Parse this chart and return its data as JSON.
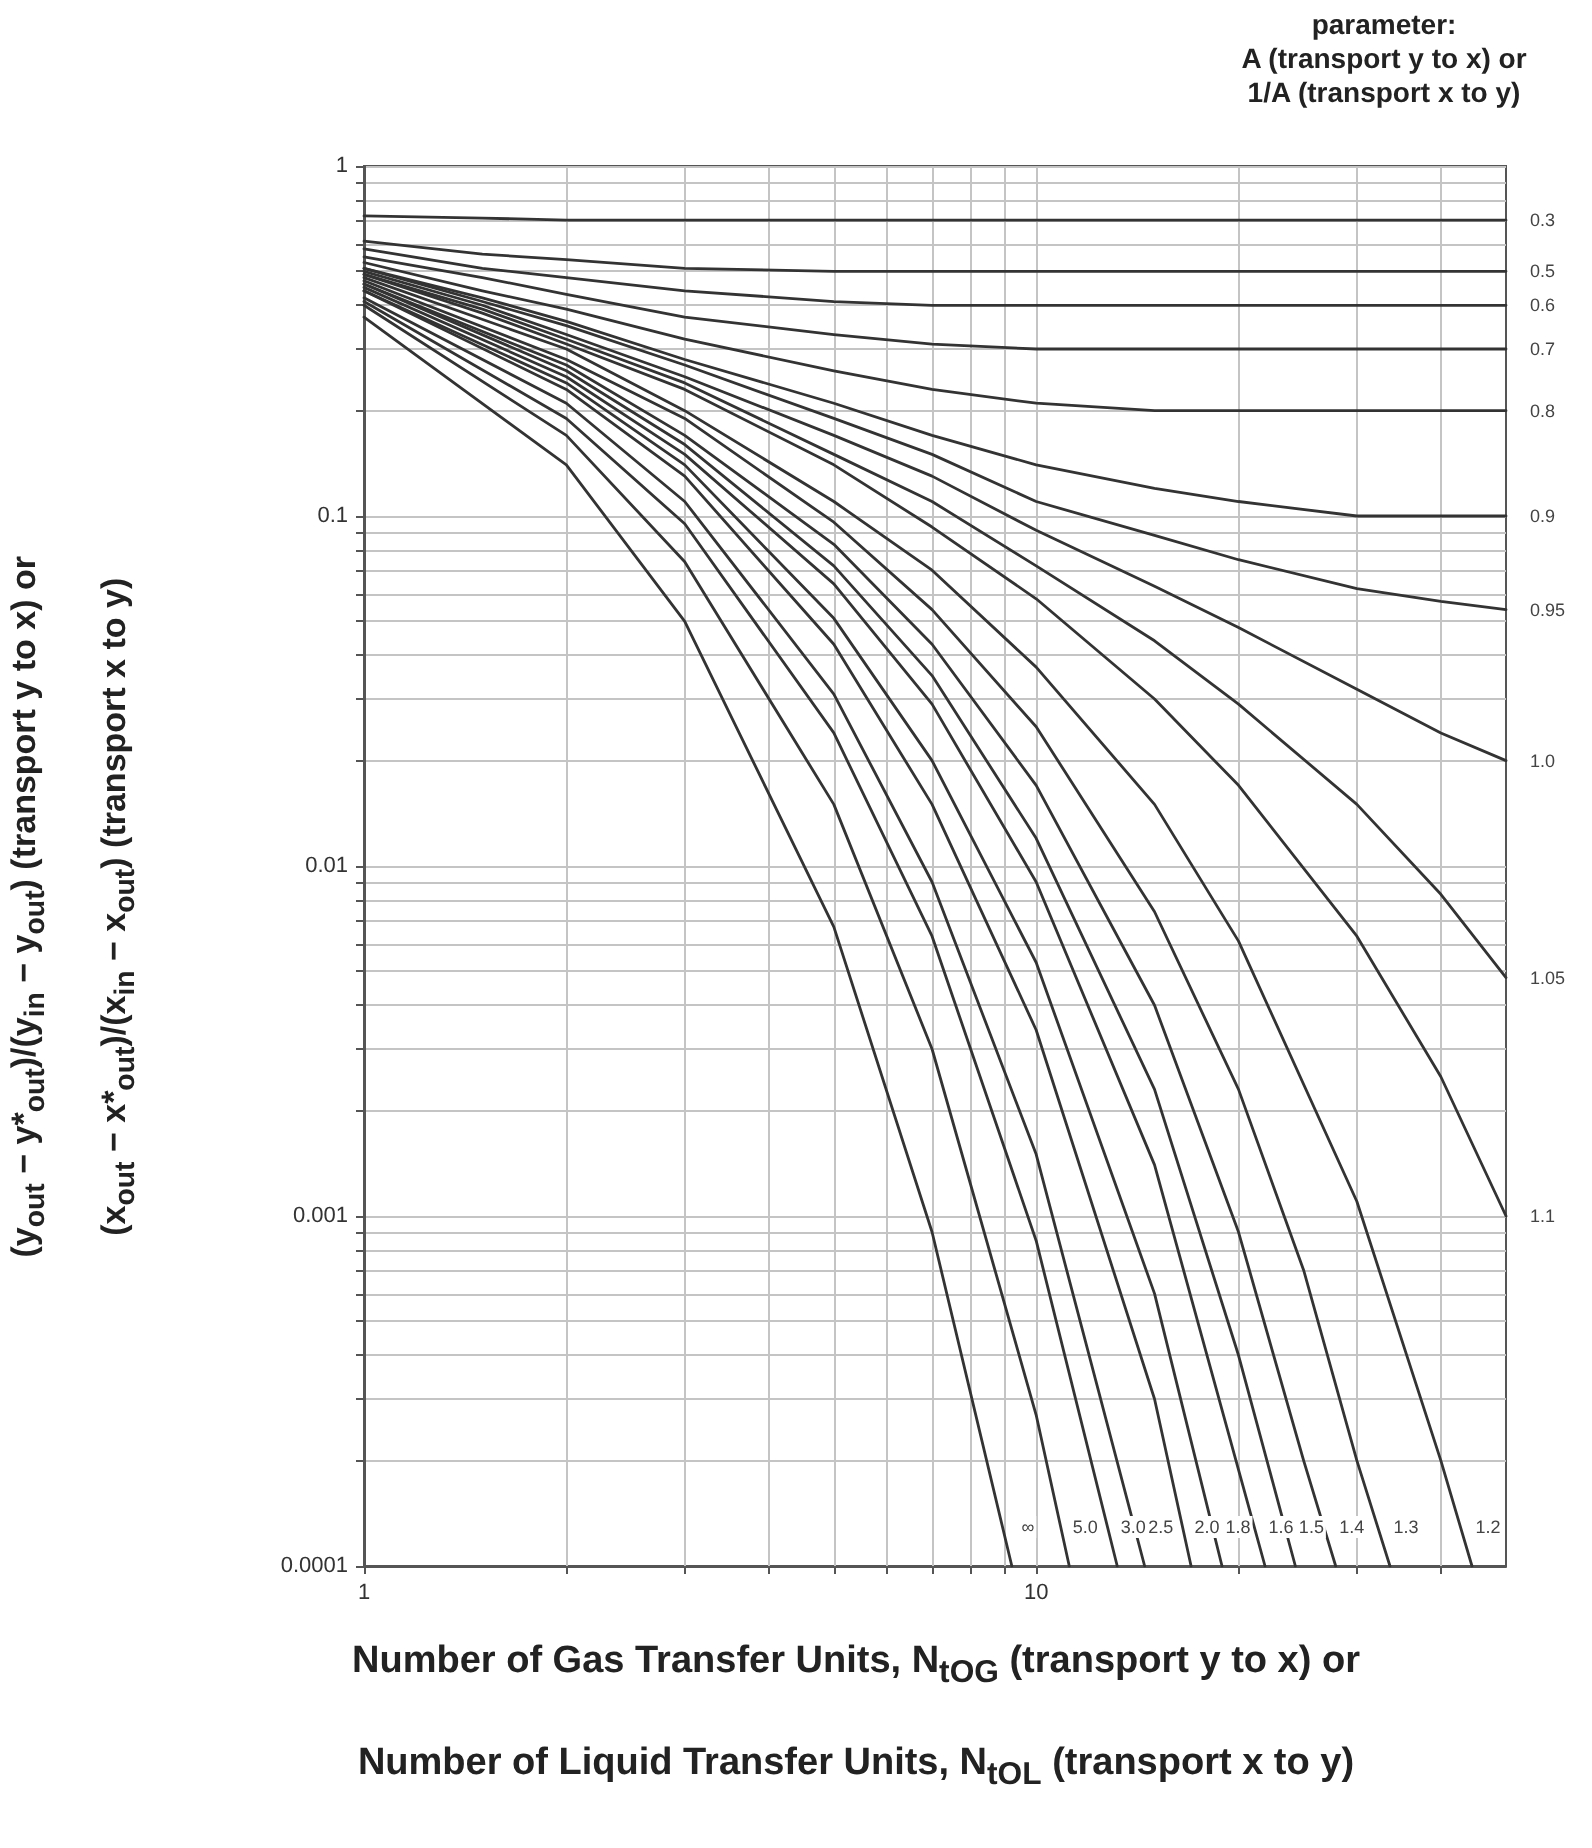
{
  "chart_data": {
    "type": "line",
    "xlabel": "Number of Gas Transfer Units, N$_{tOG}$  (transport y to x) or\nNumber of Liquid Transfer Units, N$_{tOL}$  (transport x to y)",
    "ylabel": "(y$_{out}$ − y*$_{out}$)/(y$_{in}$ − y$_{out}$)  (transport y to x) or\n(x$_{out}$ − x*$_{out}$)/(x$_{in}$ − x$_{out}$)  (transport x to y)",
    "legend_title": "parameter:\nA (transport y to x) or\n1/A (transport x to y)",
    "log": "xy",
    "grid": true,
    "marker": "none",
    "line_style": "solid",
    "xlim": [
      1,
      50
    ],
    "ylim": [
      0.0001,
      1
    ],
    "xticks": [
      1,
      {
        "value": 2,
        "label": null
      },
      {
        "value": 3,
        "label": null
      },
      {
        "value": 4,
        "label": null
      },
      {
        "value": 5,
        "label": null
      },
      {
        "value": 6,
        "label": null
      },
      {
        "value": 7,
        "label": null
      },
      {
        "value": 8,
        "label": null
      },
      {
        "value": 9,
        "label": null
      },
      10,
      {
        "value": 20,
        "label": null
      },
      {
        "value": 30,
        "label": null
      },
      {
        "value": 40,
        "label": null
      }
    ],
    "yticks": [
      0.0001,
      {
        "value": 0.0002,
        "label": null
      },
      {
        "value": 0.0003,
        "label": null
      },
      {
        "value": 0.0004,
        "label": null
      },
      {
        "value": 0.0005,
        "label": null
      },
      {
        "value": 0.0006,
        "label": null
      },
      {
        "value": 0.0007,
        "label": null
      },
      {
        "value": 0.0008,
        "label": null
      },
      {
        "value": 0.0009,
        "label": null
      },
      0.001,
      {
        "value": 0.002,
        "label": null
      },
      {
        "value": 0.003,
        "label": null
      },
      {
        "value": 0.004,
        "label": null
      },
      {
        "value": 0.005,
        "label": null
      },
      {
        "value": 0.006,
        "label": null
      },
      {
        "value": 0.007,
        "label": null
      },
      {
        "value": 0.008,
        "label": null
      },
      {
        "value": 0.009,
        "label": null
      },
      0.01,
      {
        "value": 0.02,
        "label": null
      },
      {
        "value": 0.03,
        "label": null
      },
      {
        "value": 0.04,
        "label": null
      },
      {
        "value": 0.05,
        "label": null
      },
      {
        "value": 0.06,
        "label": null
      },
      {
        "value": 0.07,
        "label": null
      },
      {
        "value": 0.08,
        "label": null
      },
      {
        "value": 0.09,
        "label": null
      },
      0.1,
      {
        "value": 0.2,
        "label": null
      },
      {
        "value": 0.3,
        "label": null
      },
      {
        "value": 0.4,
        "label": null
      },
      {
        "value": 0.5,
        "label": null
      },
      {
        "value": 0.6,
        "label": null
      },
      {
        "value": 0.7,
        "label": null
      },
      {
        "value": 0.8,
        "label": null
      },
      {
        "value": 0.9,
        "label": null
      },
      1
    ],
    "series": [
      {
        "name": "0.3",
        "color": "#333333",
        "x": [
          1,
          1.5,
          2,
          3,
          50
        ],
        "values": [
          0.72,
          0.71,
          0.7,
          0.7,
          0.7
        ]
      },
      {
        "name": "0.5",
        "color": "#333333",
        "x": [
          1,
          1.5,
          2,
          3,
          5,
          7,
          50
        ],
        "values": [
          0.61,
          0.56,
          0.54,
          0.51,
          0.5,
          0.5,
          0.5
        ]
      },
      {
        "name": "0.6",
        "color": "#333333",
        "x": [
          1,
          1.5,
          2,
          3,
          5,
          7,
          10,
          50
        ],
        "values": [
          0.58,
          0.51,
          0.48,
          0.44,
          0.41,
          0.4,
          0.4,
          0.4
        ]
      },
      {
        "name": "0.7",
        "color": "#333333",
        "x": [
          1,
          1.5,
          2,
          3,
          5,
          7,
          10,
          15,
          50
        ],
        "values": [
          0.55,
          0.48,
          0.43,
          0.37,
          0.33,
          0.31,
          0.3,
          0.3,
          0.3
        ]
      },
      {
        "name": "0.8",
        "color": "#333333",
        "x": [
          1,
          1.5,
          2,
          3,
          5,
          7,
          10,
          15,
          20,
          30,
          50
        ],
        "values": [
          0.53,
          0.44,
          0.39,
          0.32,
          0.26,
          0.23,
          0.21,
          0.2,
          0.2,
          0.2,
          0.2
        ]
      },
      {
        "name": "0.9",
        "color": "#333333",
        "x": [
          1,
          1.5,
          2,
          3,
          5,
          7,
          10,
          15,
          20,
          30,
          40,
          50
        ],
        "values": [
          0.51,
          0.42,
          0.36,
          0.28,
          0.21,
          0.17,
          0.14,
          0.12,
          0.11,
          0.1,
          0.1,
          0.1
        ]
      },
      {
        "name": "0.95",
        "color": "#333333",
        "x": [
          1,
          1.5,
          2,
          3,
          5,
          7,
          10,
          15,
          20,
          30,
          40,
          50
        ],
        "values": [
          0.51,
          0.41,
          0.35,
          0.27,
          0.19,
          0.15,
          0.11,
          0.088,
          0.075,
          0.062,
          0.057,
          0.054
        ]
      },
      {
        "name": "1.0",
        "color": "#333333",
        "x": [
          1,
          1.5,
          2,
          3,
          5,
          7,
          10,
          15,
          20,
          30,
          40,
          50
        ],
        "values": [
          0.5,
          0.4,
          0.33,
          0.25,
          0.17,
          0.13,
          0.091,
          0.063,
          0.048,
          0.032,
          0.024,
          0.02
        ]
      },
      {
        "name": "1.05",
        "color": "#333333",
        "x": [
          1,
          1.5,
          2,
          3,
          5,
          7,
          10,
          15,
          20,
          30,
          40,
          50
        ],
        "values": [
          0.49,
          0.39,
          0.32,
          0.24,
          0.15,
          0.11,
          0.072,
          0.044,
          0.029,
          0.015,
          0.0083,
          0.0048
        ]
      },
      {
        "name": "1.1",
        "color": "#333333",
        "x": [
          1,
          1.5,
          2,
          3,
          5,
          7,
          10,
          15,
          20,
          30,
          40,
          50
        ],
        "values": [
          0.49,
          0.38,
          0.31,
          0.23,
          0.14,
          0.093,
          0.058,
          0.03,
          0.017,
          0.0063,
          0.0025,
          0.001
        ]
      },
      {
        "name": "1.2",
        "color": "#333333",
        "x": [
          1,
          2,
          3,
          5,
          7,
          10,
          15,
          20,
          30,
          40,
          44.5
        ],
        "values": [
          0.48,
          0.3,
          0.2,
          0.11,
          0.07,
          0.037,
          0.015,
          0.0061,
          0.0011,
          0.0002,
          0.0001
        ]
      },
      {
        "name": "1.3",
        "color": "#333333",
        "x": [
          1,
          2,
          3,
          5,
          7,
          10,
          15,
          20,
          25,
          30,
          33.6
        ],
        "values": [
          0.47,
          0.28,
          0.19,
          0.096,
          0.054,
          0.025,
          0.0074,
          0.0023,
          0.0007,
          0.0002,
          0.0001
        ]
      },
      {
        "name": "1.4",
        "color": "#333333",
        "x": [
          1,
          2,
          3,
          5,
          7,
          10,
          15,
          20,
          25,
          27.9
        ],
        "values": [
          0.46,
          0.27,
          0.17,
          0.083,
          0.043,
          0.017,
          0.004,
          0.0009,
          0.0002,
          0.0001
        ]
      },
      {
        "name": "1.5",
        "color": "#333333",
        "x": [
          1,
          2,
          3,
          5,
          7,
          10,
          15,
          20,
          24.3
        ],
        "values": [
          0.46,
          0.26,
          0.16,
          0.072,
          0.035,
          0.012,
          0.0023,
          0.0004,
          0.0001
        ]
      },
      {
        "name": "1.6",
        "color": "#333333",
        "x": [
          1,
          2,
          3,
          5,
          7,
          10,
          15,
          21.9
        ],
        "values": [
          0.45,
          0.25,
          0.15,
          0.064,
          0.029,
          0.009,
          0.0014,
          0.0001
        ]
      },
      {
        "name": "1.8",
        "color": "#333333",
        "x": [
          1,
          2,
          3,
          5,
          7,
          10,
          15,
          18.9
        ],
        "values": [
          0.44,
          0.24,
          0.14,
          0.051,
          0.02,
          0.0053,
          0.0006,
          0.0001
        ]
      },
      {
        "name": "2.0",
        "color": "#333333",
        "x": [
          1,
          2,
          3,
          5,
          7,
          10,
          15,
          17
        ],
        "values": [
          0.44,
          0.23,
          0.13,
          0.043,
          0.015,
          0.0034,
          0.0003,
          0.0001
        ]
      },
      {
        "name": "2.5",
        "color": "#333333",
        "x": [
          1,
          2,
          3,
          5,
          7,
          10,
          14.5
        ],
        "values": [
          0.42,
          0.21,
          0.11,
          0.031,
          0.009,
          0.0015,
          0.0001
        ]
      },
      {
        "name": "3.0",
        "color": "#333333",
        "x": [
          1,
          2,
          3,
          5,
          7,
          10,
          13.2
        ],
        "values": [
          0.41,
          0.19,
          0.095,
          0.024,
          0.0063,
          0.00085,
          0.0001
        ]
      },
      {
        "name": "5.0",
        "color": "#333333",
        "x": [
          1,
          2,
          3,
          5,
          7,
          10,
          11.2
        ],
        "values": [
          0.4,
          0.17,
          0.074,
          0.015,
          0.003,
          0.00027,
          0.0001
        ]
      },
      {
        "name": "∞",
        "color": "#333333",
        "x": [
          1,
          2,
          3,
          5,
          7,
          9.2
        ],
        "values": [
          0.37,
          0.14,
          0.05,
          0.0067,
          0.0009,
          0.0001
        ]
      }
    ]
  }
}
